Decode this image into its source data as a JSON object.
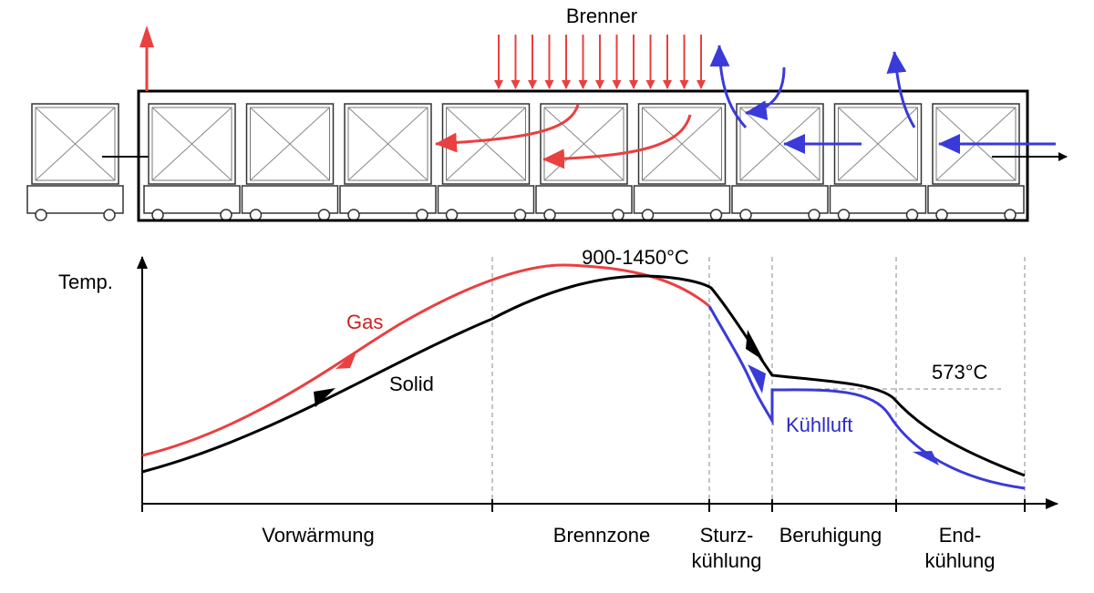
{
  "colors": {
    "gas": "#e94040",
    "air": "#3a3ad8",
    "solid": "#000000",
    "guide": "#888888",
    "gas_label": "#cc2222",
    "air_label": "#2a2ac8"
  },
  "kiln": {
    "burner_label": "Brenner",
    "exit_arrow_icon": "arrow-right-icon",
    "exhaust_icon": "arrow-up-icon"
  },
  "graph": {
    "y_axis_label": "Temp.",
    "peak_label": "900-1450°C",
    "quartz_label": "573°C",
    "gas_label": "Gas",
    "solid_label": "Solid",
    "air_label": "Kühlluft"
  },
  "zones": [
    {
      "line1": "Vorwärmung",
      "line2": ""
    },
    {
      "line1": "Brennzone",
      "line2": ""
    },
    {
      "line1": "Sturz-",
      "line2": "kühlung"
    },
    {
      "line1": "Beruhigung",
      "line2": ""
    },
    {
      "line1": "End-",
      "line2": "kühlung"
    }
  ]
}
